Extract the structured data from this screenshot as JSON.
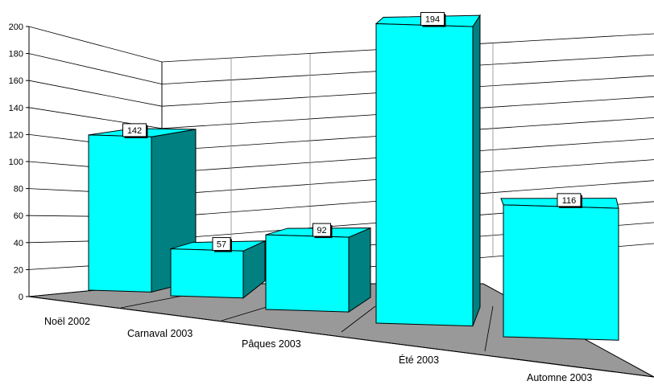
{
  "chart_data": {
    "type": "bar",
    "style": "3d-perspective",
    "categories": [
      "Noël 2002",
      "Carnaval 2003",
      "Pâques 2003",
      "Été 2003",
      "Automne 2003"
    ],
    "values": [
      142,
      57,
      92,
      194,
      116
    ],
    "data_labels": [
      "142",
      "57",
      "92",
      "194",
      "116"
    ],
    "ylim": [
      0,
      200
    ],
    "y_ticks": [
      "0",
      "20",
      "40",
      "60",
      "80",
      "100",
      "120",
      "140",
      "160",
      "180",
      "200"
    ],
    "grid": true,
    "legend": "none",
    "title": "",
    "xlabel": "",
    "ylabel": "",
    "colors": {
      "bar_front": "#00ffff",
      "bar_side": "#008080",
      "floor": "#999999",
      "grid": "#000000"
    }
  }
}
